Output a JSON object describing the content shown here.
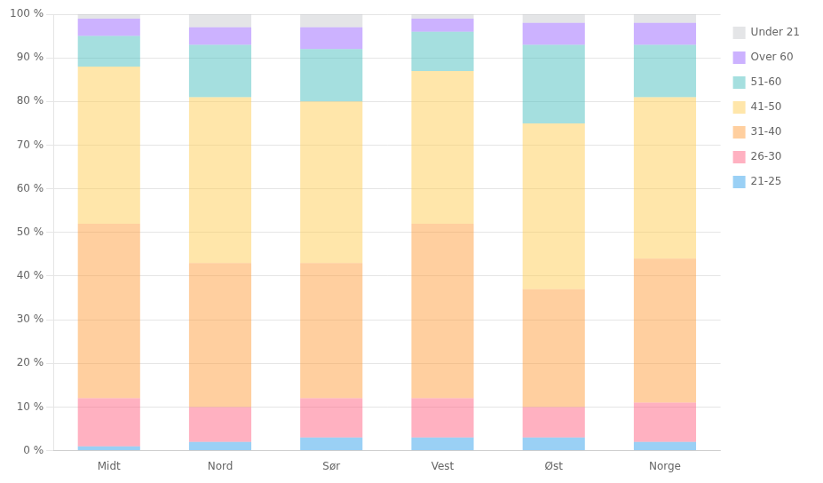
{
  "chart_data": {
    "type": "bar",
    "categories": [
      "Midt",
      "Nord",
      "Sør",
      "Vest",
      "Øst",
      "Norge"
    ],
    "series": [
      {
        "name": "21-25",
        "values": [
          1,
          2,
          3,
          3,
          3,
          2
        ]
      },
      {
        "name": "26-30",
        "values": [
          11,
          8,
          9,
          9,
          7,
          9
        ]
      },
      {
        "name": "31-40",
        "values": [
          40,
          33,
          31,
          40,
          27,
          33
        ]
      },
      {
        "name": "41-50",
        "values": [
          36,
          38,
          37,
          35,
          38,
          37
        ]
      },
      {
        "name": "51-60",
        "values": [
          7,
          12,
          12,
          9,
          18,
          12
        ]
      },
      {
        "name": "Over 60",
        "values": [
          4,
          4,
          5,
          3,
          5,
          5
        ]
      },
      {
        "name": "Under 21",
        "values": [
          1,
          3,
          3,
          1,
          2,
          2
        ]
      }
    ],
    "stacked": true,
    "ylim": [
      0,
      100
    ],
    "yticks": [
      {
        "value": 0,
        "label": "0 %"
      },
      {
        "value": 10,
        "label": "10 %"
      },
      {
        "value": 20,
        "label": "20 %"
      },
      {
        "value": 30,
        "label": "30 %"
      },
      {
        "value": 40,
        "label": "40 %"
      },
      {
        "value": 50,
        "label": "50 %"
      },
      {
        "value": 60,
        "label": "60 %"
      },
      {
        "value": 70,
        "label": "70 %"
      },
      {
        "value": 80,
        "label": "80 %"
      },
      {
        "value": 90,
        "label": "90 %"
      },
      {
        "value": 100,
        "label": "100 %"
      }
    ],
    "grid": true,
    "legend": "right"
  }
}
